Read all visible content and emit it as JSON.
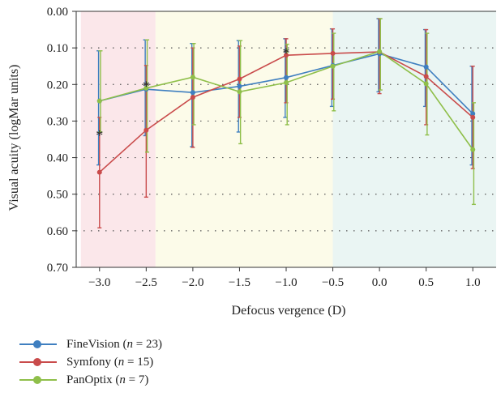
{
  "chart_data": {
    "type": "line",
    "xlabel": "Defocus vergence (D)",
    "ylabel": "Visual acuity (logMar units)",
    "x": [
      -3.0,
      -2.5,
      -2.0,
      -1.5,
      -1.0,
      -0.5,
      0.0,
      0.5,
      1.0
    ],
    "x_tick_labels": [
      "−3.0",
      "−2.5",
      "−2.0",
      "−1.5",
      "−1.0",
      "−0.5",
      "0.0",
      "0.5",
      "1.0"
    ],
    "xlim": [
      -3.25,
      1.25
    ],
    "ylim": [
      0.0,
      0.7
    ],
    "y_inverted": true,
    "y_ticks": [
      0.0,
      0.1,
      0.2,
      0.3,
      0.4,
      0.5,
      0.6,
      0.7
    ],
    "y_tick_labels": [
      "0.00",
      "0.10",
      "0.20",
      "0.30",
      "0.40",
      "0.50",
      "0.60",
      "0.70"
    ],
    "grid": "dotted-horizontal",
    "legend_position": "bottom",
    "background_regions": [
      {
        "x_from": -3.2,
        "x_to": -2.4,
        "color": "#fbe7ea"
      },
      {
        "x_from": -2.4,
        "x_to": -0.5,
        "color": "#fcfbe9"
      },
      {
        "x_from": -0.5,
        "x_to": 1.25,
        "color": "#eaf5f3"
      }
    ],
    "series": [
      {
        "name": "FineVision",
        "n_label": "n",
        "n_value": "= 23)",
        "color": "#3f7fc0",
        "values": [
          0.245,
          0.213,
          0.222,
          0.205,
          0.181,
          0.148,
          0.116,
          0.152,
          0.28
        ],
        "error_low": [
          0.108,
          0.078,
          0.088,
          0.08,
          0.075,
          0.048,
          0.02,
          0.05,
          0.15
        ],
        "error_high": [
          0.42,
          0.34,
          0.37,
          0.33,
          0.29,
          0.26,
          0.22,
          0.26,
          0.42
        ]
      },
      {
        "name": "Symfony",
        "n_label": "n",
        "n_value": "= 15)",
        "color": "#c94b4b",
        "values": [
          0.44,
          0.325,
          0.235,
          0.185,
          0.12,
          0.115,
          0.111,
          0.178,
          0.29
        ],
        "error_low": [
          0.29,
          0.148,
          0.1,
          0.095,
          0.075,
          0.048,
          0.02,
          0.05,
          0.15
        ],
        "error_high": [
          0.592,
          0.508,
          0.372,
          0.29,
          0.25,
          0.24,
          0.225,
          0.31,
          0.43
        ]
      },
      {
        "name": "PanOptix",
        "n_label": "n",
        "n_value": "= 7)",
        "color": "#8fbf4a",
        "values": [
          0.245,
          0.21,
          0.18,
          0.22,
          0.195,
          0.15,
          0.11,
          0.198,
          0.378
        ],
        "error_low": [
          0.108,
          0.078,
          0.088,
          0.08,
          0.09,
          0.06,
          0.02,
          0.06,
          0.25
        ],
        "error_high": [
          0.33,
          0.385,
          0.31,
          0.362,
          0.31,
          0.272,
          0.215,
          0.338,
          0.528
        ]
      }
    ],
    "annotations": [
      {
        "text": "*",
        "x": -3.0,
        "y": 0.335
      },
      {
        "text": "*",
        "x": -2.5,
        "y": 0.2
      },
      {
        "text": "*",
        "x": -1.0,
        "y": 0.11
      }
    ]
  },
  "legend": {
    "items": [
      {
        "name": "FineVision",
        "n_label": "n",
        "n_value": "= 23)",
        "color": "#3f7fc0"
      },
      {
        "name": "Symfony",
        "n_label": "n",
        "n_value": "= 15)",
        "color": "#c94b4b"
      },
      {
        "name": "PanOptix",
        "n_label": "n",
        "n_value": "= 7)",
        "color": "#8fbf4a"
      }
    ]
  }
}
